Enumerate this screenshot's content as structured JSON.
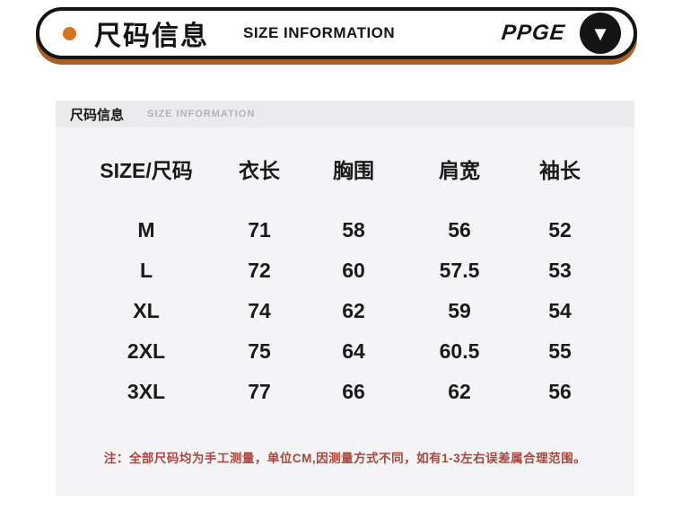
{
  "banner": {
    "title_cn": "尺码信息",
    "title_en": "SIZE INFORMATION",
    "brand": "PPGE",
    "arrow_glyph": "▼",
    "colors": {
      "dot": "#d2751c",
      "shadow": "#a5602a",
      "border": "#141414"
    }
  },
  "card": {
    "header": {
      "title_cn": "尺码信息",
      "title_en": "SIZE INFORMATION"
    },
    "note": "注：全部尺码均为手工测量，单位CM,因测量方式不同，如有1-3左右误差属合理范围。",
    "note_color": "#a8453c",
    "background": "#f4f4f6",
    "header_background": "#ebebed"
  },
  "chart_data": {
    "type": "table",
    "title": "尺码信息 / SIZE INFORMATION",
    "unit": "CM",
    "columns": [
      "SIZE/尺码",
      "衣长",
      "胸围",
      "肩宽",
      "袖长"
    ],
    "rows": [
      [
        "M",
        "71",
        "58",
        "56",
        "52"
      ],
      [
        "L",
        "72",
        "60",
        "57.5",
        "53"
      ],
      [
        "XL",
        "74",
        "62",
        "59",
        "54"
      ],
      [
        "2XL",
        "75",
        "64",
        "60.5",
        "55"
      ],
      [
        "3XL",
        "77",
        "66",
        "62",
        "56"
      ]
    ]
  }
}
